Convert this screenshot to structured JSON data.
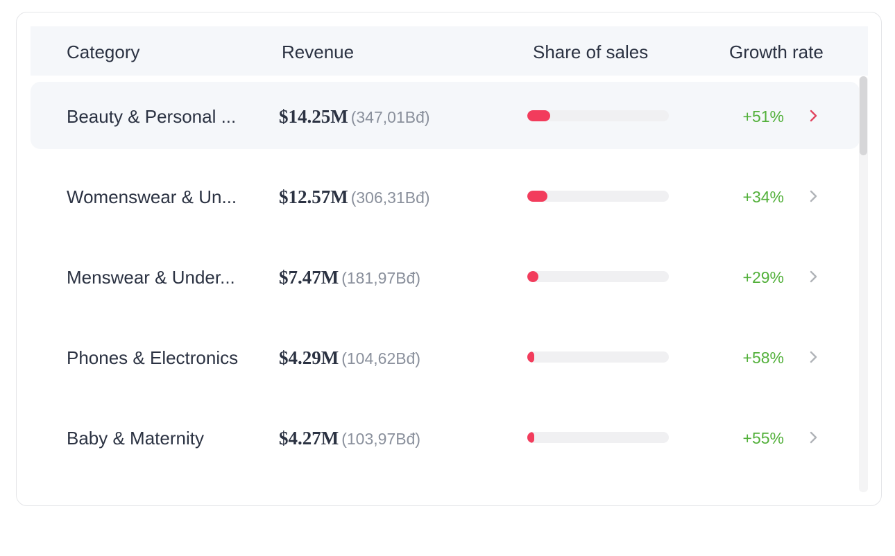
{
  "table": {
    "headers": {
      "category": "Category",
      "revenue": "Revenue",
      "share": "Share of sales",
      "growth": "Growth rate"
    },
    "rows": [
      {
        "category": "Beauty & Personal ...",
        "revenue_usd": "$14.25M",
        "revenue_local": "(347,01Bđ)",
        "share_pct": 16,
        "growth": "+51%",
        "selected": true
      },
      {
        "category": "Womenswear & Un...",
        "revenue_usd": "$12.57M",
        "revenue_local": "(306,31Bđ)",
        "share_pct": 14,
        "growth": "+34%",
        "selected": false
      },
      {
        "category": "Menswear & Under...",
        "revenue_usd": "$7.47M",
        "revenue_local": "(181,97Bđ)",
        "share_pct": 8,
        "growth": "+29%",
        "selected": false
      },
      {
        "category": "Phones & Electronics",
        "revenue_usd": "$4.29M",
        "revenue_local": "(104,62Bđ)",
        "share_pct": 5,
        "growth": "+58%",
        "selected": false
      },
      {
        "category": "Baby & Maternity",
        "revenue_usd": "$4.27M",
        "revenue_local": "(103,97Bđ)",
        "share_pct": 5,
        "growth": "+55%",
        "selected": false
      }
    ]
  },
  "colors": {
    "accent": "#f23c5c",
    "growth_positive": "#52b03a",
    "chevron_default": "#b0b3b8",
    "chevron_selected": "#e0445e",
    "header_bg": "#f5f7fa"
  },
  "icons": {
    "row_action": "chevron-right-icon"
  }
}
